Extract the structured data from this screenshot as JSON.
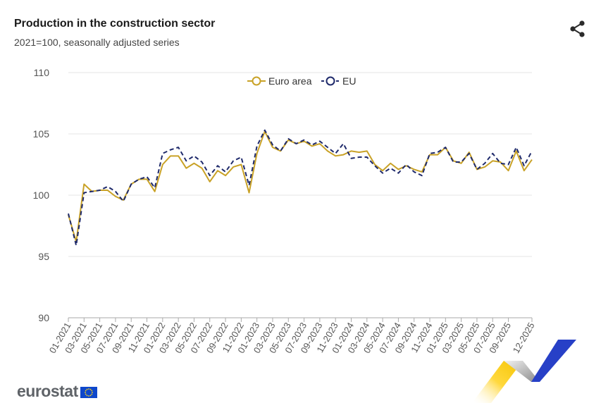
{
  "header": {
    "title": "Production in the construction sector",
    "subtitle": "2021=100, seasonally adjusted series"
  },
  "branding": {
    "logo_text": "eurostat"
  },
  "icons": {
    "share": "share-icon"
  },
  "colors": {
    "euro_area": "#c9a227",
    "eu": "#1f2a6b",
    "grid": "#e6e6e6",
    "axis": "#aaaaaa"
  },
  "chart_data": {
    "type": "line",
    "title": "Production in the construction sector",
    "subtitle": "2021=100, seasonally adjusted series",
    "ylim": [
      90,
      110
    ],
    "yticks": [
      90,
      95,
      100,
      105,
      110
    ],
    "grid": true,
    "legend": "top-center",
    "x": [
      "01-2021",
      "02-2021",
      "03-2021",
      "04-2021",
      "05-2021",
      "06-2021",
      "07-2021",
      "08-2021",
      "09-2021",
      "10-2021",
      "11-2021",
      "12-2021",
      "01-2022",
      "02-2022",
      "03-2022",
      "04-2022",
      "05-2022",
      "06-2022",
      "07-2022",
      "08-2022",
      "09-2022",
      "10-2022",
      "11-2022",
      "12-2022",
      "01-2023",
      "02-2023",
      "03-2023",
      "04-2023",
      "05-2023",
      "06-2023",
      "07-2023",
      "08-2023",
      "09-2023",
      "10-2023",
      "11-2023",
      "12-2023",
      "01-2024",
      "02-2024",
      "03-2024",
      "04-2024",
      "05-2024",
      "06-2024",
      "07-2024",
      "08-2024",
      "09-2024",
      "10-2024",
      "11-2024",
      "12-2024",
      "01-2025",
      "02-2025",
      "03-2025",
      "04-2025",
      "05-2025",
      "06-2025",
      "07-2025",
      "08-2025",
      "09-2025",
      "10-2025",
      "11-2025",
      "12-2025"
    ],
    "xtick_labels": [
      "01-2021",
      "03-2021",
      "05-2021",
      "07-2021",
      "09-2021",
      "11-2021",
      "01-2022",
      "03-2022",
      "05-2022",
      "07-2022",
      "09-2022",
      "11-2022",
      "01-2023",
      "03-2023",
      "05-2023",
      "07-2023",
      "09-2023",
      "11-2023",
      "01-2024",
      "03-2024",
      "05-2024",
      "07-2024",
      "09-2024",
      "11-2024",
      "01-2025",
      "03-2025",
      "05-2025",
      "07-2025",
      "09-2025",
      "12-2025"
    ],
    "series": [
      {
        "name": "Euro area",
        "style": "solid",
        "values": [
          98.4,
          96.2,
          100.9,
          100.3,
          100.4,
          100.4,
          99.9,
          99.6,
          100.9,
          101.3,
          101.3,
          100.3,
          102.5,
          103.2,
          103.2,
          102.2,
          102.6,
          102.2,
          101.1,
          102.0,
          101.6,
          102.3,
          102.5,
          100.2,
          103.4,
          105.2,
          103.9,
          103.6,
          104.5,
          104.2,
          104.4,
          104.0,
          104.2,
          103.6,
          103.2,
          103.3,
          103.6,
          103.5,
          103.6,
          102.5,
          102.0,
          102.6,
          102.1,
          102.4,
          102.1,
          101.9,
          103.3,
          103.3,
          103.9,
          102.8,
          102.6,
          103.5,
          102.1,
          102.3,
          102.8,
          102.7,
          102.0,
          103.6,
          102.0,
          102.9
        ]
      },
      {
        "name": "EU",
        "style": "dashed",
        "values": [
          98.5,
          95.9,
          100.2,
          100.3,
          100.4,
          100.7,
          100.3,
          99.5,
          100.9,
          101.3,
          101.5,
          100.6,
          103.4,
          103.7,
          103.9,
          102.8,
          103.2,
          102.7,
          101.6,
          102.4,
          101.9,
          102.8,
          103.1,
          100.8,
          104.0,
          105.3,
          104.1,
          103.6,
          104.6,
          104.2,
          104.5,
          104.1,
          104.4,
          103.9,
          103.4,
          104.2,
          103.0,
          103.1,
          103.1,
          102.4,
          101.8,
          102.2,
          101.8,
          102.5,
          101.9,
          101.6,
          103.4,
          103.5,
          103.9,
          102.7,
          102.7,
          103.4,
          102.1,
          102.6,
          103.4,
          102.6,
          102.5,
          103.9,
          102.4,
          103.6
        ]
      }
    ]
  }
}
